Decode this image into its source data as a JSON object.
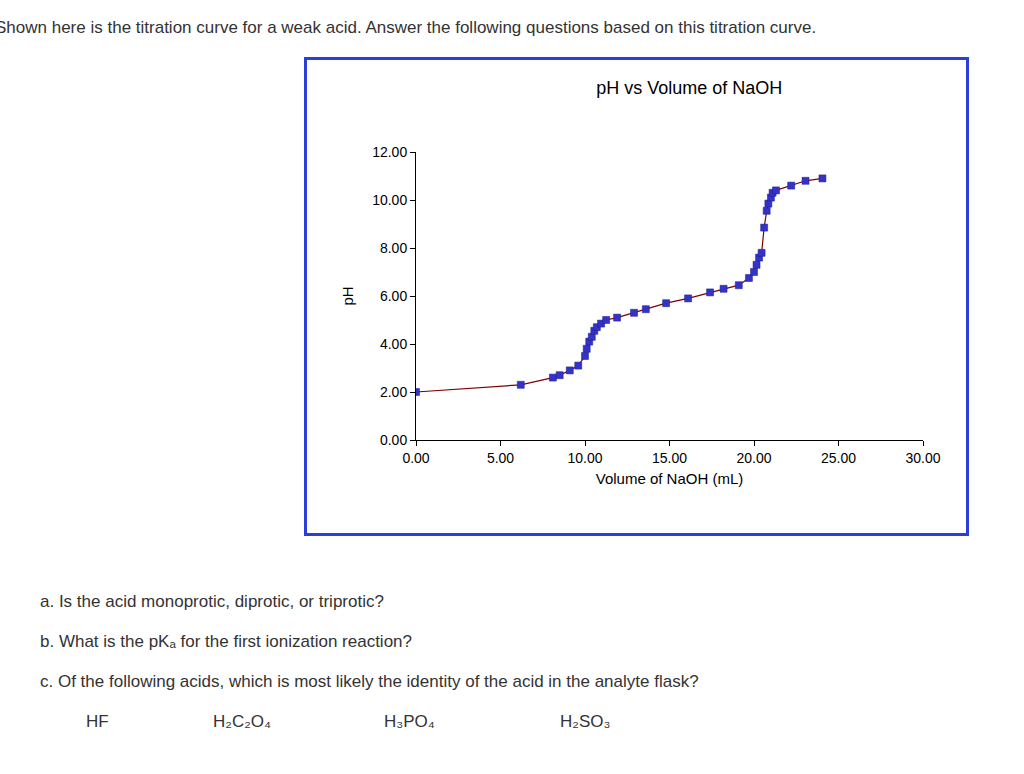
{
  "header": "Shown here is the titration curve for a weak acid. Answer the following questions based on this titration curve.",
  "chart_data": {
    "type": "line",
    "title": "pH vs Volume of NaOH",
    "x_label": "Volume of NaOH (mL)",
    "y_label": "pH",
    "x": [
      0,
      6.2,
      8.1,
      8.5,
      9.1,
      9.6,
      10.0,
      10.1,
      10.25,
      10.4,
      10.55,
      10.7,
      10.95,
      11.25,
      11.9,
      12.9,
      13.6,
      14.8,
      16.1,
      17.4,
      18.2,
      19.1,
      19.7,
      20.0,
      20.15,
      20.3,
      20.45,
      20.6,
      20.75,
      20.85,
      21.0,
      21.1,
      21.3,
      22.2,
      23.05,
      24.05
    ],
    "values": [
      2.0,
      2.3,
      2.6,
      2.7,
      2.9,
      3.1,
      3.5,
      3.8,
      4.1,
      4.3,
      4.55,
      4.7,
      4.85,
      5.0,
      5.1,
      5.3,
      5.45,
      5.7,
      5.9,
      6.15,
      6.3,
      6.45,
      6.75,
      7.0,
      7.3,
      7.6,
      7.8,
      8.85,
      9.55,
      9.85,
      10.1,
      10.3,
      10.4,
      10.6,
      10.8,
      10.9
    ],
    "color": "#800000",
    "marker": "square",
    "marker_color": "#3333cc",
    "xlim": [
      0,
      30
    ],
    "xticks": [
      {
        "value": 0,
        "label": "0.00"
      },
      {
        "value": 5,
        "label": "5.00"
      },
      {
        "value": 10,
        "label": "10.00"
      },
      {
        "value": 15,
        "label": "15.00"
      },
      {
        "value": 20,
        "label": "20.00"
      },
      {
        "value": 25,
        "label": "25.00"
      },
      {
        "value": 30,
        "label": "30.00"
      }
    ],
    "ylim": [
      0,
      12
    ],
    "yticks": [
      {
        "value": 0,
        "label": "0.00"
      },
      {
        "value": 2,
        "label": "2.00"
      },
      {
        "value": 4,
        "label": "4.00"
      },
      {
        "value": 6,
        "label": "6.00"
      },
      {
        "value": 8,
        "label": "8.00"
      },
      {
        "value": 10,
        "label": "10.00"
      },
      {
        "value": 12,
        "label": "12.00"
      }
    ],
    "grid": false
  },
  "questions": [
    "a. Is the acid monoprotic, diprotic, or triprotic?",
    "b. What is the pKₐ for the first ionization reaction?",
    "c. Of the following acids, which is most likely the identity of the acid in the analyte flask?"
  ],
  "choices": [
    "HF",
    "H₂C₂O₄",
    "H₃PO₄",
    "H₂SO₃"
  ]
}
